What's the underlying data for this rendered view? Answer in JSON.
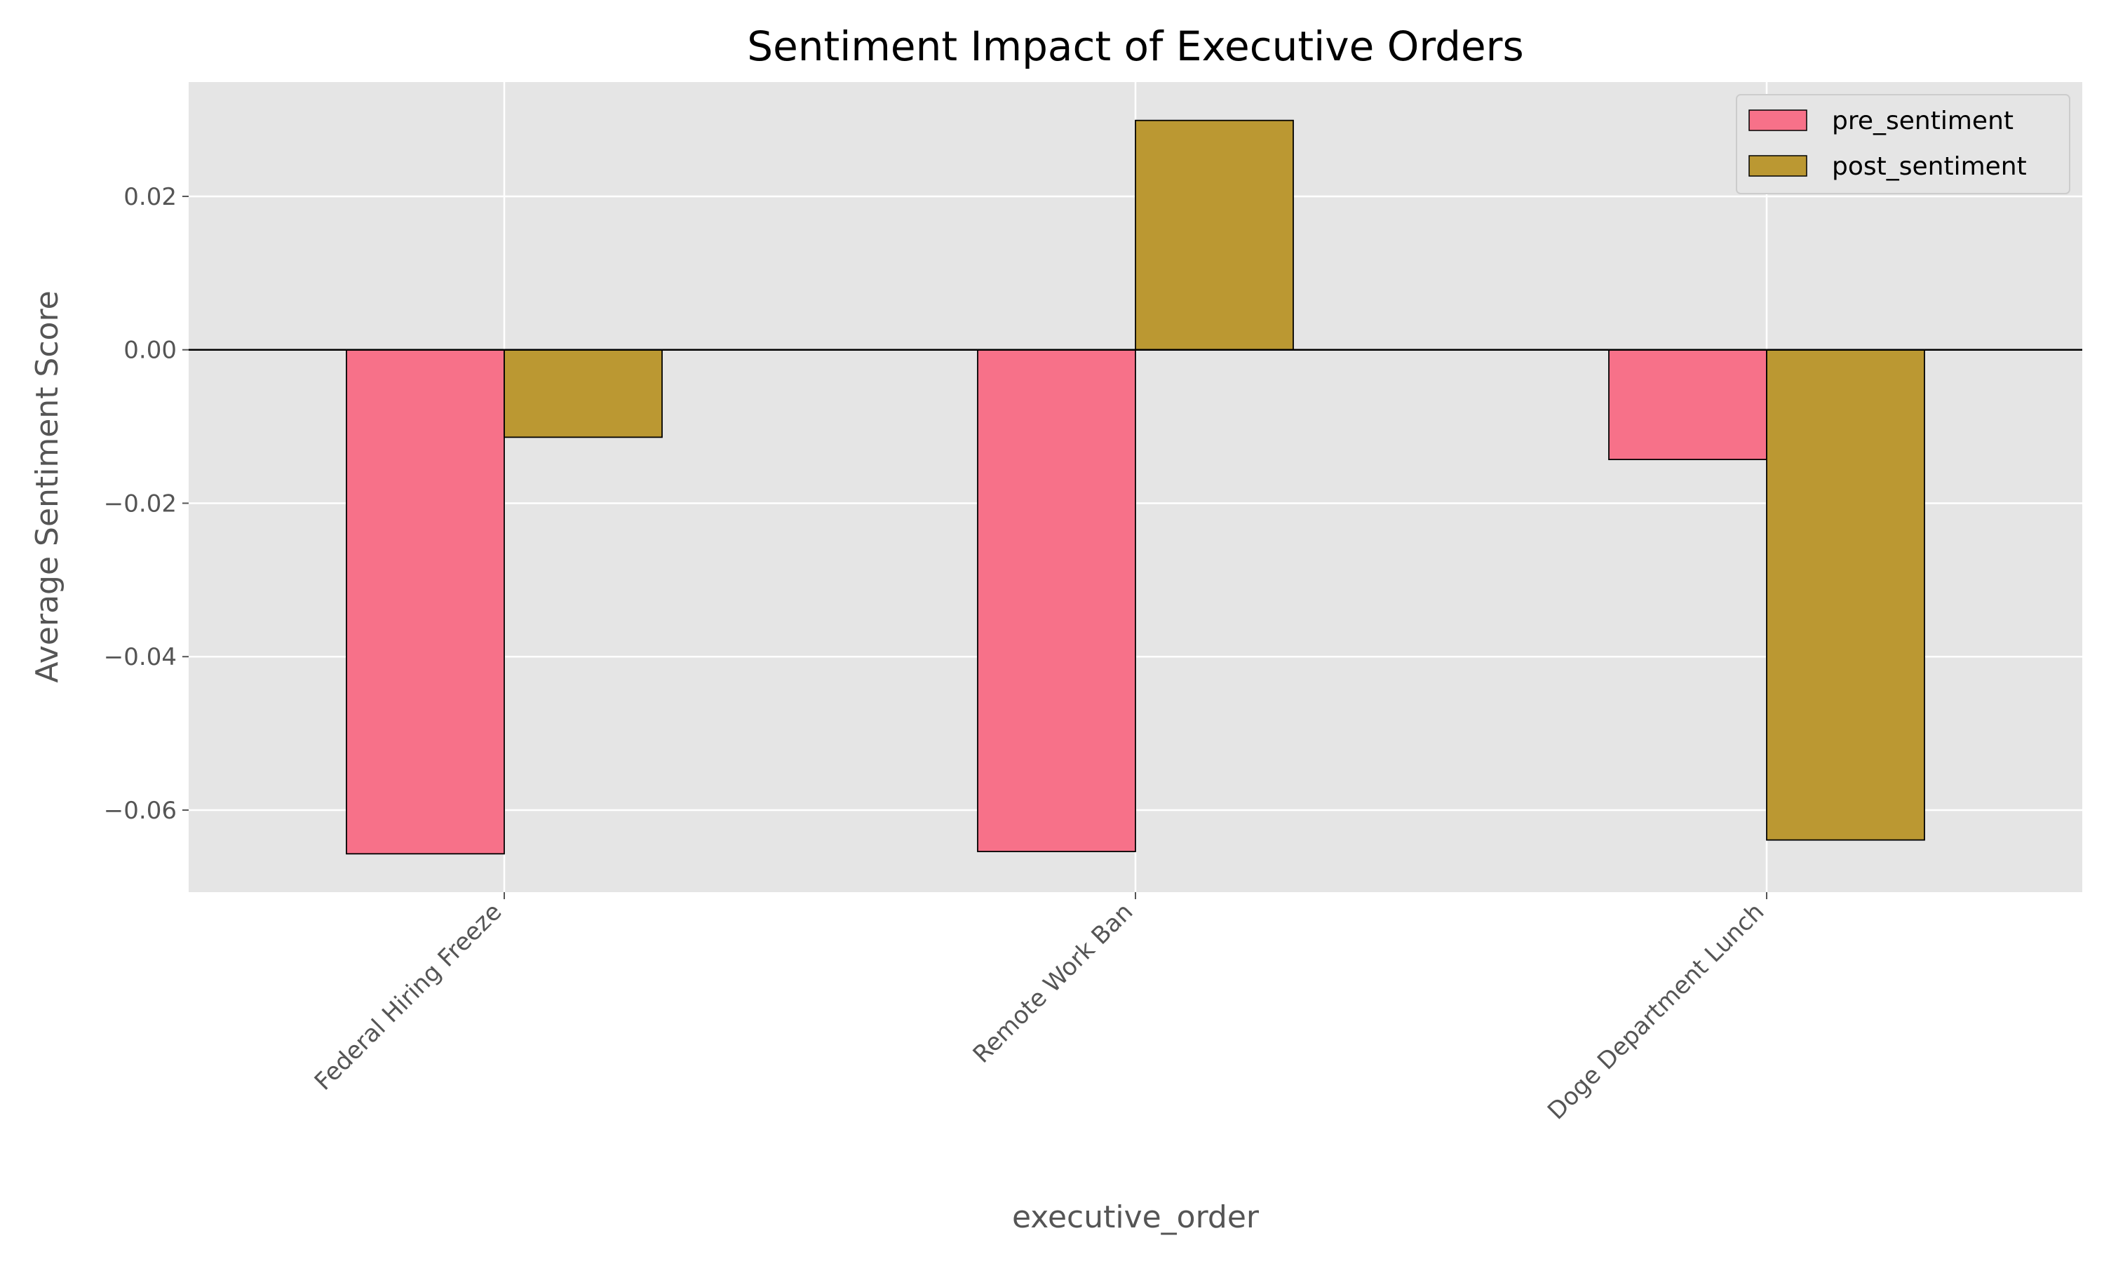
{
  "chart_data": {
    "type": "bar",
    "title": "Sentiment Impact of Executive Orders",
    "xlabel": "executive_order",
    "ylabel": "Average Sentiment Score",
    "categories": [
      "Federal Hiring Freeze",
      "Remote Work Ban",
      "Doge Department Lunch"
    ],
    "series": [
      {
        "name": "pre_sentiment",
        "values": [
          -0.0657,
          -0.0654,
          -0.0143
        ],
        "color": "#f77189"
      },
      {
        "name": "post_sentiment",
        "values": [
          -0.0114,
          0.0299,
          -0.0639
        ],
        "color": "#bb9832"
      }
    ],
    "ylim": [
      -0.0707,
      0.0349
    ],
    "yticks": [
      0.02,
      0.0,
      -0.02,
      -0.04,
      -0.06
    ],
    "ytick_labels": [
      "0.02",
      "0.00",
      "−0.02",
      "−0.04",
      "−0.06"
    ],
    "grid": true,
    "background": "#e5e5e5",
    "zero_line": true,
    "legend_position": "top-right"
  }
}
